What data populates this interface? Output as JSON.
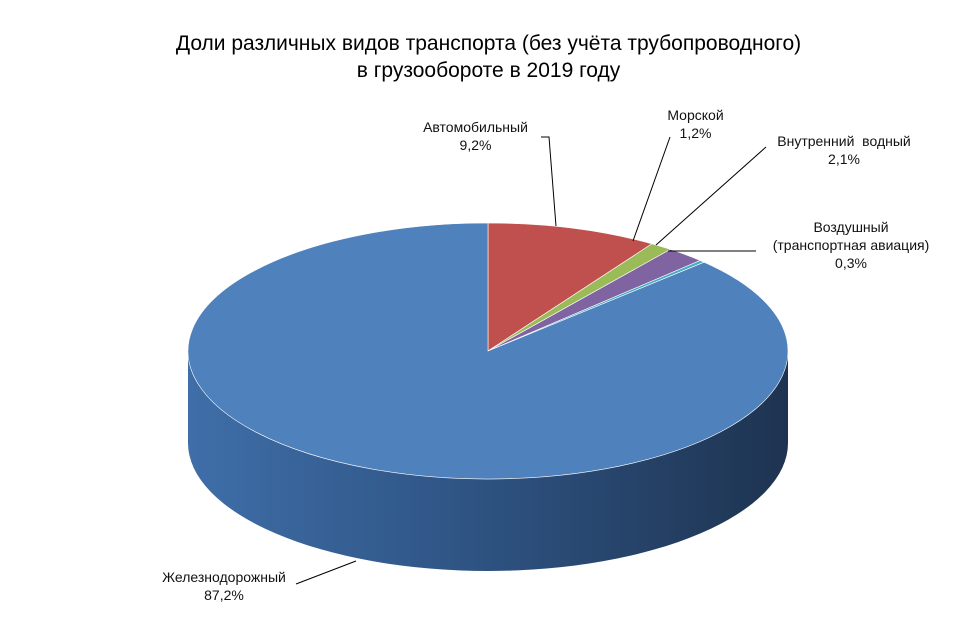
{
  "chart_data": {
    "type": "pie",
    "title_line1": "Доли различных видов транспорта (без учёта трубопроводного)",
    "title_line2": "в грузообороте в 2019 году",
    "slices": [
      {
        "name": "Автомобильный",
        "value_label": "9,2%",
        "value": 9.2,
        "color": "#c0504d"
      },
      {
        "name": "Морской",
        "value_label": "1,2%",
        "value": 1.2,
        "color": "#9bbb59"
      },
      {
        "name": "Внутренний  водный",
        "value_label": "2,1%",
        "value": 2.1,
        "color": "#8064a2"
      },
      {
        "name_line1": "Воздушный",
        "name_line2": "(транспортная авиация)",
        "value_label": "0,3%",
        "value": 0.3,
        "color": "#4bacc6"
      },
      {
        "name": "Железнодорожный",
        "value_label": "87,2%",
        "value": 87.2,
        "color": "#4f81bd"
      }
    ],
    "style": "3d-pie",
    "legend": "none"
  }
}
